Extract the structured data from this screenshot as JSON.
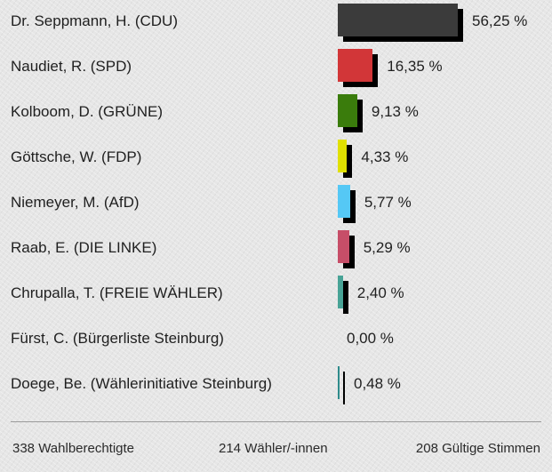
{
  "chart_data": {
    "type": "bar",
    "orientation": "horizontal",
    "categories": [
      "Dr. Seppmann, H. (CDU)",
      "Naudiet, R. (SPD)",
      "Kolboom, D. (GRÜNE)",
      "Göttsche, W. (FDP)",
      "Niemeyer, M. (AfD)",
      "Raab, E. (DIE LINKE)",
      "Chrupalla, T. (FREIE WÄHLER)",
      "Fürst, C. (Bürgerliste Steinburg)",
      "Doege, Be. (Wählerinitiative Steinburg)"
    ],
    "values": [
      56.25,
      16.35,
      9.13,
      4.33,
      5.77,
      5.29,
      2.4,
      0.0,
      0.48
    ],
    "value_labels": [
      "56,25 %",
      "16,35 %",
      "9,13 %",
      "4,33 %",
      "5,77 %",
      "5,29 %",
      "2,40 %",
      "0,00 %",
      "0,48 %"
    ],
    "colors": [
      "#3b3b3b",
      "#d23638",
      "#3a7c0c",
      "#e0e000",
      "#55c8f5",
      "#c74e68",
      "#48a396",
      "#808080",
      "#2e8b8b"
    ],
    "xlim": [
      0,
      100
    ],
    "grid": false,
    "legend": "none"
  },
  "summary": {
    "eligible": "338 Wahlberechtigte",
    "voters": "214 Wähler/-innen",
    "valid": "208 Gültige Stimmen"
  }
}
